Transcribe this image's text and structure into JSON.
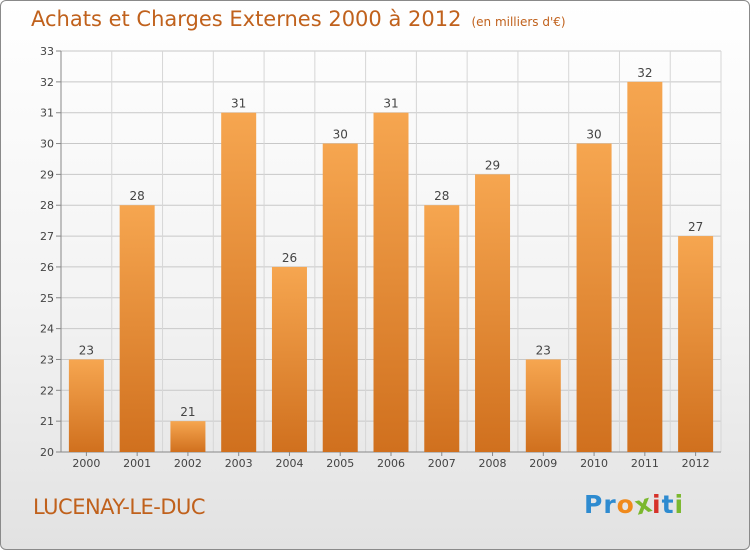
{
  "header": {
    "title": "Achats et Charges Externes 2000 à 2012",
    "subtitle": "(en milliers d'€)"
  },
  "footer": {
    "city": "LUCENAY-LE-DUC",
    "logo": [
      "P",
      "r",
      "o",
      "x",
      "i",
      "t",
      "i"
    ]
  },
  "colors": {
    "bar_top": "#f6a650",
    "bar_bottom": "#d0701e",
    "title": "#c0611c",
    "logo": [
      "#2e8bd0",
      "#2e8bd0",
      "#f08a1c",
      "#7bb82e",
      "#d6322a",
      "#2e8bd0",
      "#7bb82e"
    ]
  },
  "chart_data": {
    "type": "bar",
    "categories": [
      "2000",
      "2001",
      "2002",
      "2003",
      "2004",
      "2005",
      "2006",
      "2007",
      "2008",
      "2009",
      "2010",
      "2011",
      "2012"
    ],
    "values": [
      23,
      28,
      21,
      31,
      26,
      30,
      31,
      28,
      29,
      23,
      30,
      32,
      27
    ],
    "ylim": [
      20,
      33
    ],
    "yticks": [
      20,
      21,
      22,
      23,
      24,
      25,
      26,
      27,
      28,
      29,
      30,
      31,
      32,
      33
    ],
    "grid": true
  }
}
